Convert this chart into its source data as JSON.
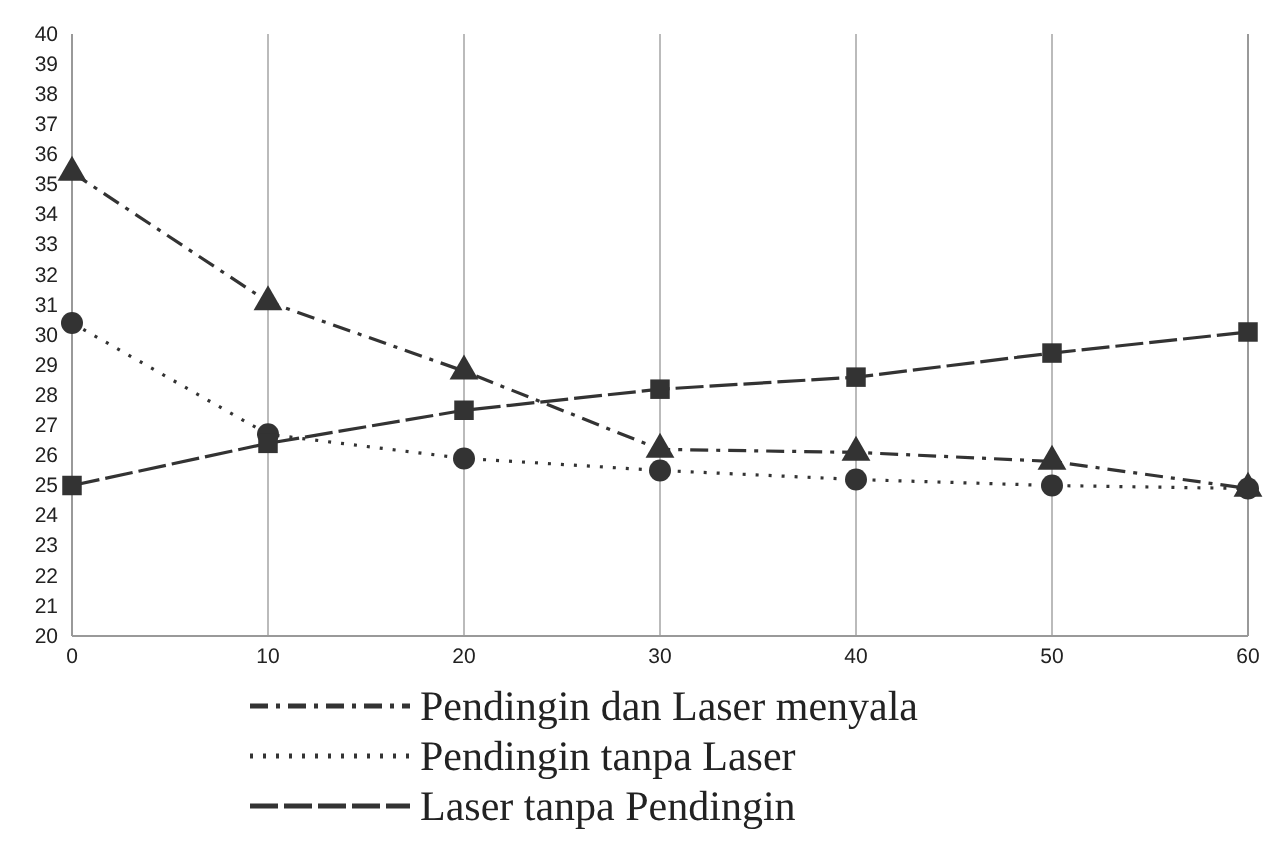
{
  "chart_data": {
    "type": "line",
    "x": [
      0,
      10,
      20,
      30,
      40,
      50,
      60
    ],
    "xlim": [
      0,
      60
    ],
    "xticks": [
      0,
      10,
      20,
      30,
      40,
      50,
      60
    ],
    "ylim": [
      20,
      40
    ],
    "yticks": [
      20,
      21,
      22,
      23,
      24,
      25,
      26,
      27,
      28,
      29,
      30,
      31,
      32,
      33,
      34,
      35,
      36,
      37,
      38,
      39,
      40
    ],
    "grid": "x",
    "legend": "bottom",
    "series": [
      {
        "name": "Pendingin dan Laser menyala",
        "color": "#333333",
        "marker": "triangle",
        "line_style": "dashdot",
        "values": [
          35.4,
          31.1,
          28.8,
          26.2,
          26.1,
          25.8,
          24.9
        ]
      },
      {
        "name": "Pendingin tanpa Laser",
        "color": "#333333",
        "marker": "circle",
        "line_style": "dotted",
        "values": [
          30.4,
          26.7,
          25.9,
          25.5,
          25.2,
          25.0,
          24.9
        ]
      },
      {
        "name": "Laser tanpa Pendingin",
        "color": "#333333",
        "marker": "square",
        "line_style": "dashed",
        "values": [
          25.0,
          26.4,
          27.5,
          28.2,
          28.6,
          29.4,
          30.1
        ]
      }
    ]
  }
}
